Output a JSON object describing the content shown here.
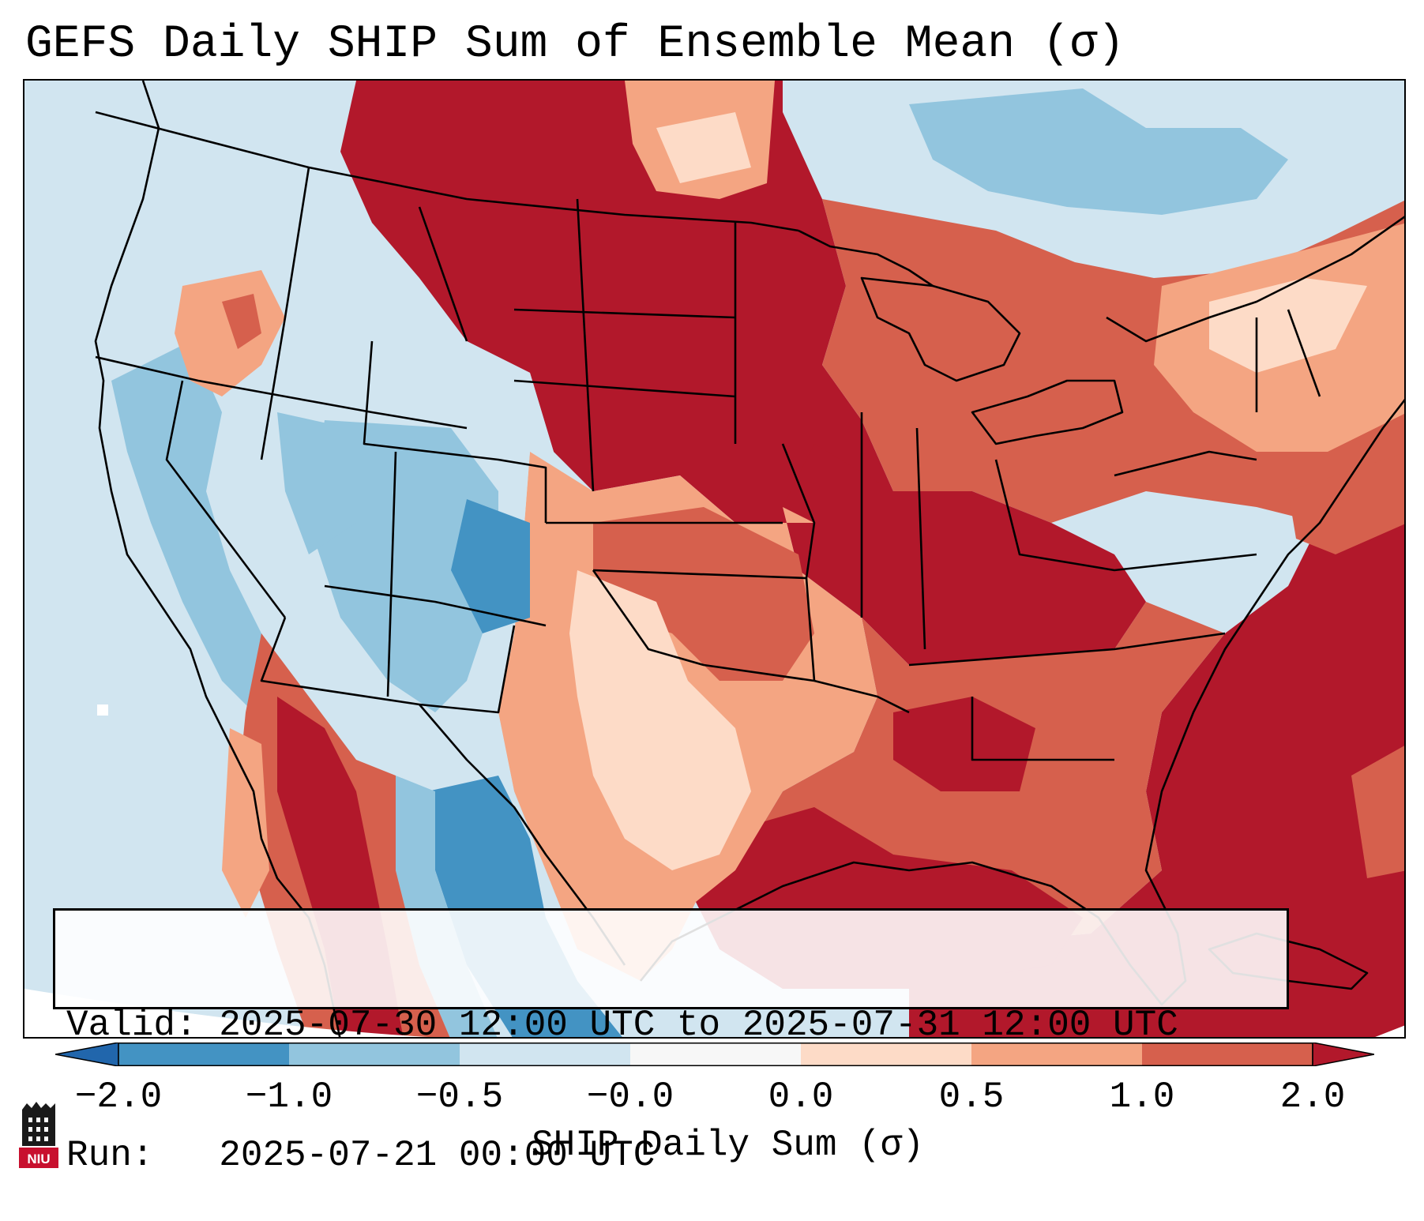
{
  "title": "GEFS Daily SHIP Sum of Ensemble Mean (σ)",
  "info": {
    "valid_line": "Valid: 2025-07-30 12:00 UTC to 2025-07-31 12:00 UTC",
    "run_line": "Run:   2025-07-21 00:00 UTC"
  },
  "colorbar": {
    "label": "SHIP Daily Sum (σ)",
    "ticks": [
      "−2.0",
      "−1.0",
      "−0.5",
      "−0.0",
      "0.0",
      "0.5",
      "1.0",
      "2.0"
    ],
    "bins": [
      {
        "from": -2.0,
        "to": -1.0,
        "color": "#4393c3"
      },
      {
        "from": -1.0,
        "to": -0.5,
        "color": "#92c5de"
      },
      {
        "from": -0.5,
        "to": -0.0,
        "color": "#d1e5f0"
      },
      {
        "from": -0.0,
        "to": 0.0,
        "color": "#f7f7f7"
      },
      {
        "from": 0.0,
        "to": 0.5,
        "color": "#fddbc7"
      },
      {
        "from": 0.5,
        "to": 1.0,
        "color": "#f4a582"
      },
      {
        "from": 1.0,
        "to": 2.0,
        "color": "#d6604d"
      }
    ],
    "under_color": "#2166ac",
    "over_color": "#b2182b"
  },
  "map": {
    "region": "CONUS",
    "colors": {
      "strong_positive": "#b2182b",
      "positive": "#d6604d",
      "weak_positive": "#f4a582",
      "slight_positive": "#fddbc7",
      "slight_negative": "#d1e5f0",
      "weak_negative": "#92c5de",
      "negative": "#4393c3"
    }
  },
  "logo": {
    "text": "NIU",
    "color": "#c8102e"
  }
}
